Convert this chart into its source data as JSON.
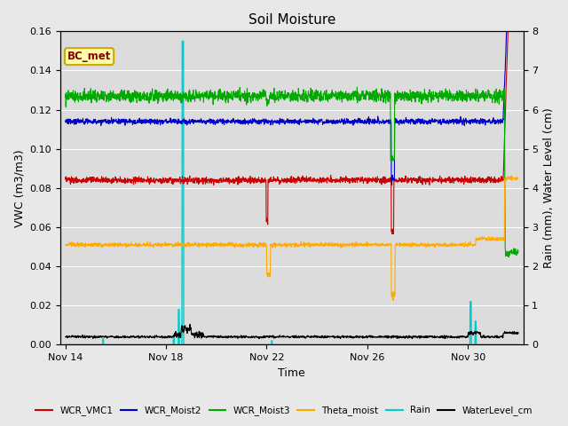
{
  "title": "Soil Moisture",
  "xlabel": "Time",
  "ylabel_left": "VWC (m3/m3)",
  "ylabel_right": "Rain (mm), Water Level (cm)",
  "ylim_left": [
    0.0,
    0.16
  ],
  "ylim_right": [
    0.0,
    8.0
  ],
  "yticks_left": [
    0.0,
    0.02,
    0.04,
    0.06,
    0.08,
    0.1,
    0.12,
    0.14,
    0.16
  ],
  "yticks_right": [
    0.0,
    1.0,
    2.0,
    3.0,
    4.0,
    5.0,
    6.0,
    7.0,
    8.0
  ],
  "xlim": [
    -0.2,
    18.2
  ],
  "xtick_labels": [
    "Nov 14",
    "Nov 18",
    "Nov 22",
    "Nov 26",
    "Nov 30"
  ],
  "xtick_positions": [
    0,
    4,
    8,
    12,
    16
  ],
  "bc_met_label": "BC_met",
  "legend_entries": [
    "WCR_VMC1",
    "WCR_Moist2",
    "WCR_Moist3",
    "Theta_moist",
    "Rain",
    "WaterLevel_cm"
  ],
  "legend_colors": [
    "#cc0000",
    "#0000cc",
    "#00aa00",
    "#ffaa00",
    "#00cccc",
    "#000000"
  ],
  "fig_width": 6.4,
  "fig_height": 4.8,
  "dpi": 100
}
